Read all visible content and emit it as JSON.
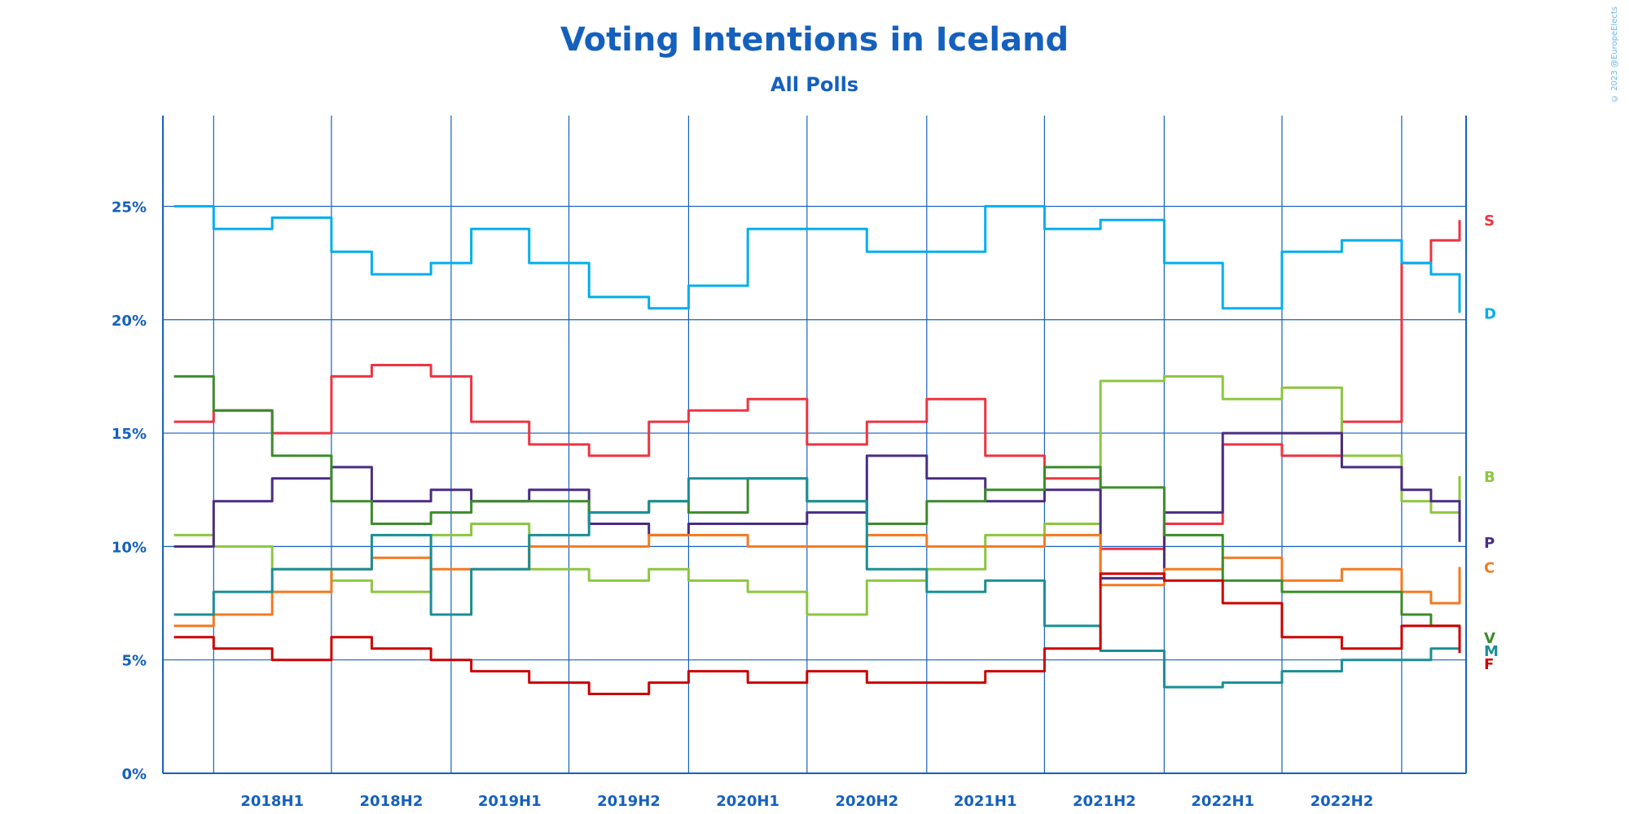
{
  "credit": "© 2023 @EuropeElects",
  "colors": {
    "axis": "#1560bd",
    "title": "#1560bd",
    "S": "#ef3340",
    "D": "#00aeef",
    "B": "#8cc63f",
    "P": "#4b2c83",
    "C": "#f47920",
    "V": "#3c8b2a",
    "M": "#1a8e96",
    "F": "#cc0000"
  },
  "chart_data": {
    "type": "line",
    "title": "Voting Intentions in Iceland",
    "subtitle": "All Polls",
    "xlabel": "",
    "ylabel": "",
    "grid": true,
    "legend": "right-side end labels",
    "x_range": [
      "2017-10-15",
      "2023-04-10"
    ],
    "ylim": [
      0,
      29
    ],
    "y_ticks": [
      0,
      5,
      10,
      15,
      20,
      25
    ],
    "y_tick_labels": [
      "0%",
      "5%",
      "10%",
      "15%",
      "20%",
      "25%"
    ],
    "x_tick_labels": [
      "2018H1",
      "2018H2",
      "2019H1",
      "2019H2",
      "2020H1",
      "2020H2",
      "2021H1",
      "2021H2",
      "2022H1",
      "2022H2"
    ],
    "x_tick_dates": [
      "2018-04-01",
      "2018-10-01",
      "2019-04-01",
      "2019-10-01",
      "2020-04-01",
      "2020-10-01",
      "2021-04-01",
      "2021-10-01",
      "2022-04-01",
      "2022-10-01"
    ],
    "x_gridlines": [
      "2018-01-01",
      "2018-07-01",
      "2019-01-01",
      "2019-07-01",
      "2020-01-01",
      "2020-07-01",
      "2021-01-01",
      "2021-07-01",
      "2022-01-01",
      "2022-07-01",
      "2023-01-01"
    ],
    "series": [
      {
        "name": "S",
        "x": [
          "2017-11-01",
          "2018-01-01",
          "2018-04-01",
          "2018-07-01",
          "2018-09-01",
          "2018-12-01",
          "2019-02-01",
          "2019-05-01",
          "2019-08-01",
          "2019-11-01",
          "2020-01-01",
          "2020-04-01",
          "2020-07-01",
          "2020-10-01",
          "2021-01-01",
          "2021-04-01",
          "2021-07-01",
          "2021-09-25",
          "2022-01-01",
          "2022-04-01",
          "2022-07-01",
          "2022-10-01",
          "2023-01-01",
          "2023-02-15",
          "2023-03-31"
        ],
        "values": [
          15.5,
          16.0,
          15.0,
          17.5,
          18.0,
          17.5,
          15.5,
          14.5,
          14.0,
          15.5,
          16.0,
          16.5,
          14.5,
          15.5,
          16.5,
          14.0,
          13.0,
          9.9,
          11.0,
          14.5,
          14.0,
          15.5,
          22.5,
          23.5,
          24.4
        ]
      },
      {
        "name": "D",
        "x": [
          "2017-11-01",
          "2018-01-01",
          "2018-04-01",
          "2018-07-01",
          "2018-09-01",
          "2018-12-01",
          "2019-02-01",
          "2019-05-01",
          "2019-08-01",
          "2019-11-01",
          "2020-01-01",
          "2020-04-01",
          "2020-07-01",
          "2020-10-01",
          "2021-01-01",
          "2021-04-01",
          "2021-07-01",
          "2021-09-25",
          "2022-01-01",
          "2022-04-01",
          "2022-07-01",
          "2022-10-01",
          "2023-01-01",
          "2023-02-15",
          "2023-03-31"
        ],
        "values": [
          25.0,
          24.0,
          24.5,
          23.0,
          22.0,
          22.5,
          24.0,
          22.5,
          21.0,
          20.5,
          21.5,
          24.0,
          24.0,
          23.0,
          23.0,
          25.0,
          24.0,
          24.4,
          22.5,
          20.5,
          23.0,
          23.5,
          22.5,
          22.0,
          20.3
        ]
      },
      {
        "name": "B",
        "x": [
          "2017-11-01",
          "2018-01-01",
          "2018-04-01",
          "2018-07-01",
          "2018-09-01",
          "2018-12-01",
          "2019-02-01",
          "2019-05-01",
          "2019-08-01",
          "2019-11-01",
          "2020-01-01",
          "2020-04-01",
          "2020-07-01",
          "2020-10-01",
          "2021-01-01",
          "2021-04-01",
          "2021-07-01",
          "2021-09-25",
          "2022-01-01",
          "2022-04-01",
          "2022-07-01",
          "2022-10-01",
          "2023-01-01",
          "2023-02-15",
          "2023-03-31"
        ],
        "values": [
          10.5,
          10.0,
          9.0,
          8.5,
          8.0,
          10.5,
          11.0,
          9.0,
          8.5,
          9.0,
          8.5,
          8.0,
          7.0,
          8.5,
          9.0,
          10.5,
          11.0,
          17.3,
          17.5,
          16.5,
          17.0,
          14.0,
          12.0,
          11.5,
          13.1
        ]
      },
      {
        "name": "P",
        "x": [
          "2017-11-01",
          "2018-01-01",
          "2018-04-01",
          "2018-07-01",
          "2018-09-01",
          "2018-12-01",
          "2019-02-01",
          "2019-05-01",
          "2019-08-01",
          "2019-11-01",
          "2020-01-01",
          "2020-04-01",
          "2020-07-01",
          "2020-10-01",
          "2021-01-01",
          "2021-04-01",
          "2021-07-01",
          "2021-09-25",
          "2022-01-01",
          "2022-04-01",
          "2022-07-01",
          "2022-10-01",
          "2023-01-01",
          "2023-02-15",
          "2023-03-31"
        ],
        "values": [
          10.0,
          12.0,
          13.0,
          13.5,
          12.0,
          12.5,
          12.0,
          12.5,
          11.0,
          10.5,
          11.0,
          11.0,
          11.5,
          14.0,
          13.0,
          12.0,
          12.5,
          8.6,
          11.5,
          15.0,
          15.0,
          13.5,
          12.5,
          12.0,
          10.2
        ]
      },
      {
        "name": "C",
        "x": [
          "2017-11-01",
          "2018-01-01",
          "2018-04-01",
          "2018-07-01",
          "2018-09-01",
          "2018-12-01",
          "2019-02-01",
          "2019-05-01",
          "2019-08-01",
          "2019-11-01",
          "2020-01-01",
          "2020-04-01",
          "2020-07-01",
          "2020-10-01",
          "2021-01-01",
          "2021-04-01",
          "2021-07-01",
          "2021-09-25",
          "2022-01-01",
          "2022-04-01",
          "2022-07-01",
          "2022-10-01",
          "2023-01-01",
          "2023-02-15",
          "2023-03-31"
        ],
        "values": [
          6.5,
          7.0,
          8.0,
          9.0,
          9.5,
          9.0,
          9.0,
          10.0,
          10.0,
          10.5,
          10.5,
          10.0,
          10.0,
          10.5,
          10.0,
          10.0,
          10.5,
          8.3,
          9.0,
          9.5,
          8.5,
          9.0,
          8.0,
          7.5,
          9.1
        ]
      },
      {
        "name": "V",
        "x": [
          "2017-11-01",
          "2018-01-01",
          "2018-04-01",
          "2018-07-01",
          "2018-09-01",
          "2018-12-01",
          "2019-02-01",
          "2019-05-01",
          "2019-08-01",
          "2019-11-01",
          "2020-01-01",
          "2020-04-01",
          "2020-07-01",
          "2020-10-01",
          "2021-01-01",
          "2021-04-01",
          "2021-07-01",
          "2021-09-25",
          "2022-01-01",
          "2022-04-01",
          "2022-07-01",
          "2022-10-01",
          "2023-01-01",
          "2023-02-15",
          "2023-03-31"
        ],
        "values": [
          17.5,
          16.0,
          14.0,
          12.0,
          11.0,
          11.5,
          12.0,
          12.0,
          11.5,
          12.0,
          11.5,
          13.0,
          12.0,
          11.0,
          12.0,
          12.5,
          13.5,
          12.6,
          10.5,
          8.5,
          8.0,
          8.0,
          7.0,
          6.5,
          6.0
        ]
      },
      {
        "name": "M",
        "x": [
          "2017-11-01",
          "2018-01-01",
          "2018-04-01",
          "2018-07-01",
          "2018-09-01",
          "2018-12-01",
          "2019-02-01",
          "2019-05-01",
          "2019-08-01",
          "2019-11-01",
          "2020-01-01",
          "2020-04-01",
          "2020-07-01",
          "2020-10-01",
          "2021-01-01",
          "2021-04-01",
          "2021-07-01",
          "2021-09-25",
          "2022-01-01",
          "2022-04-01",
          "2022-07-01",
          "2022-10-01",
          "2023-01-01",
          "2023-02-15",
          "2023-03-31"
        ],
        "values": [
          7.0,
          8.0,
          9.0,
          9.0,
          10.5,
          7.0,
          9.0,
          10.5,
          11.5,
          12.0,
          13.0,
          13.0,
          12.0,
          9.0,
          8.0,
          8.5,
          6.5,
          5.4,
          3.8,
          4.0,
          4.5,
          5.0,
          5.0,
          5.5,
          5.5
        ]
      },
      {
        "name": "F",
        "x": [
          "2017-11-01",
          "2018-01-01",
          "2018-04-01",
          "2018-07-01",
          "2018-09-01",
          "2018-12-01",
          "2019-02-01",
          "2019-05-01",
          "2019-08-01",
          "2019-11-01",
          "2020-01-01",
          "2020-04-01",
          "2020-07-01",
          "2020-10-01",
          "2021-01-01",
          "2021-04-01",
          "2021-07-01",
          "2021-09-25",
          "2022-01-01",
          "2022-04-01",
          "2022-07-01",
          "2022-10-01",
          "2023-01-01",
          "2023-02-15",
          "2023-03-31"
        ],
        "values": [
          6.0,
          5.5,
          5.0,
          6.0,
          5.5,
          5.0,
          4.5,
          4.0,
          3.5,
          4.0,
          4.5,
          4.0,
          4.5,
          4.0,
          4.0,
          4.5,
          5.5,
          8.8,
          8.5,
          7.5,
          6.0,
          5.5,
          6.5,
          6.5,
          5.3
        ]
      }
    ]
  }
}
